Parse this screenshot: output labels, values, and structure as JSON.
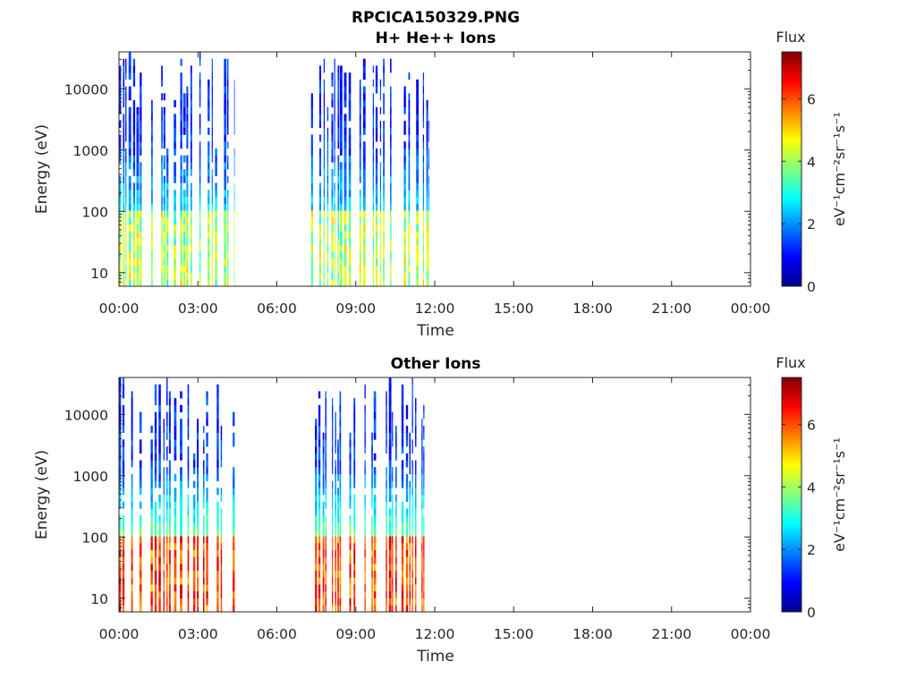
{
  "figure": {
    "title_line1": "RPCICA150329.PNG"
  },
  "chart_data": [
    {
      "type": "heatmap",
      "title": "H+ He++ Ions",
      "xlabel": "Time",
      "ylabel": "Energy (eV)",
      "x_ticks": [
        "00:00",
        "03:00",
        "06:00",
        "09:00",
        "12:00",
        "15:00",
        "18:00",
        "21:00",
        "00:00"
      ],
      "xlim_hours": [
        0,
        24
      ],
      "y_scale": "log",
      "ylim": [
        6,
        40000
      ],
      "y_ticks": [
        {
          "value": 10,
          "label": "10"
        },
        {
          "value": 100,
          "label": "100"
        },
        {
          "value": 1000,
          "label": "1000"
        },
        {
          "value": 10000,
          "label": "10000"
        }
      ],
      "colorbar": {
        "title": "Flux",
        "label": "eV⁻¹cm⁻²sr⁻¹s⁻¹",
        "range": [
          0,
          7.5
        ],
        "ticks": [
          "0",
          "2",
          "4",
          "6"
        ],
        "colormap": "jet"
      },
      "data_intervals_hours": [
        [
          0.0,
          4.4
        ],
        [
          7.3,
          11.8
        ]
      ],
      "low_energy_flux": 3.8,
      "high_energy_flux": 1.2
    },
    {
      "type": "heatmap",
      "title": "Other Ions",
      "xlabel": "Time",
      "ylabel": "Energy (eV)",
      "x_ticks": [
        "00:00",
        "03:00",
        "06:00",
        "09:00",
        "12:00",
        "15:00",
        "18:00",
        "21:00",
        "00:00"
      ],
      "xlim_hours": [
        0,
        24
      ],
      "y_scale": "log",
      "ylim": [
        6,
        40000
      ],
      "y_ticks": [
        {
          "value": 10,
          "label": "10"
        },
        {
          "value": 100,
          "label": "100"
        },
        {
          "value": 1000,
          "label": "1000"
        },
        {
          "value": 10000,
          "label": "10000"
        }
      ],
      "colorbar": {
        "title": "Flux",
        "label": "eV⁻¹cm⁻²sr⁻¹s⁻¹",
        "range": [
          0,
          7.5
        ],
        "ticks": [
          "0",
          "2",
          "4",
          "6"
        ],
        "colormap": "jet"
      },
      "data_intervals_hours": [
        [
          0.0,
          4.4
        ],
        [
          7.3,
          12.0
        ]
      ],
      "low_energy_flux": 5.8,
      "high_energy_flux": 1.3
    }
  ]
}
